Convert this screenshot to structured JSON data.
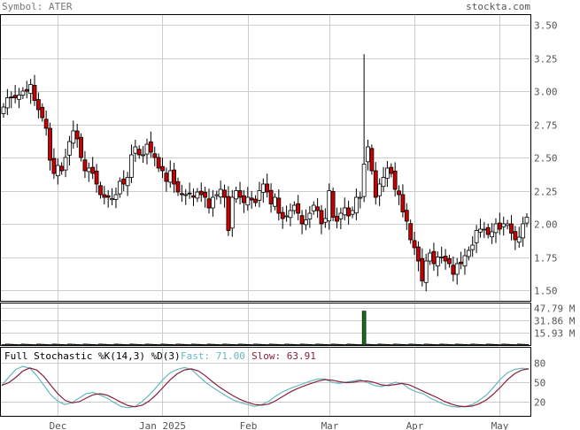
{
  "header": {
    "symbol": "Symbol: ATER",
    "site": "stockta.com"
  },
  "colors": {
    "up": "#ffffff",
    "down": "#cc0000",
    "volume": "#1a6b1a",
    "fast": "#66b8bf",
    "slow": "#8a1f3a",
    "grid": "#cccccc"
  },
  "chart_data": [
    {
      "type": "candlestick",
      "price_ticks": [
        "3.50",
        "3.25",
        "3.00",
        "2.75",
        "2.50",
        "2.25",
        "2.00",
        "1.75",
        "1.50"
      ],
      "price_tick_values": [
        3.5,
        3.25,
        3.0,
        2.75,
        2.5,
        2.25,
        2.0,
        1.75,
        1.5
      ],
      "ylim": [
        1.42,
        3.58
      ],
      "x_labels": [
        "Dec",
        "Jan 2025",
        "Feb",
        "Mar",
        "Apr",
        "May"
      ],
      "x_label_index": [
        14,
        41,
        63,
        84,
        106,
        128
      ],
      "grid": true,
      "n_days": 136,
      "close": [
        2.88,
        2.95,
        2.95,
        2.95,
        2.97,
        3.0,
        3.0,
        3.05,
        2.93,
        2.86,
        2.8,
        2.72,
        2.48,
        2.38,
        2.44,
        2.4,
        2.5,
        2.62,
        2.7,
        2.64,
        2.5,
        2.4,
        2.42,
        2.38,
        2.3,
        2.22,
        2.2,
        2.2,
        2.19,
        2.22,
        2.32,
        2.3,
        2.35,
        2.52,
        2.58,
        2.52,
        2.52,
        2.6,
        2.54,
        2.5,
        2.42,
        2.4,
        2.32,
        2.4,
        2.3,
        2.24,
        2.22,
        2.22,
        2.23,
        2.2,
        2.24,
        2.22,
        2.2,
        2.12,
        2.2,
        2.22,
        2.26,
        2.2,
        1.95,
        2.2,
        2.25,
        2.2,
        2.16,
        2.2,
        2.18,
        2.16,
        2.25,
        2.3,
        2.24,
        2.15,
        2.2,
        2.08,
        2.04,
        2.06,
        2.1,
        2.14,
        2.08,
        2.0,
        2.03,
        2.08,
        2.14,
        2.1,
        2.0,
        2.04,
        2.25,
        2.05,
        2.02,
        2.08,
        2.12,
        2.06,
        2.1,
        2.2,
        2.2,
        2.45,
        2.58,
        2.4,
        2.2,
        2.3,
        2.35,
        2.42,
        2.38,
        2.26,
        2.22,
        2.09,
        2.02,
        1.88,
        1.82,
        1.72,
        1.57,
        1.72,
        1.78,
        1.7,
        1.75,
        1.75,
        1.72,
        1.7,
        1.62,
        1.7,
        1.7,
        1.76,
        1.8,
        1.84,
        1.95,
        1.96,
        1.96,
        1.92,
        1.94,
        2.0,
        1.96,
        2.0,
        2.0,
        1.93,
        1.88,
        1.9,
        2.0,
        2.05
      ],
      "volume_ticks": [
        "47.79 M",
        "31.86 M",
        "15.93 M"
      ],
      "volume_tick_values": [
        47.79,
        31.86,
        15.93
      ],
      "volume_spike": {
        "index": 93,
        "value": 44.0
      },
      "stochastic": {
        "title": "Full Stochastic %K(14,3) %D(3)",
        "fast_label": "Fast: 71.00",
        "slow_label": "Slow: 63.91",
        "ticks": [
          "80",
          "50",
          "20"
        ],
        "tick_values": [
          80,
          50,
          20
        ],
        "fast": [
          45,
          58,
          70,
          75,
          72,
          60,
          45,
          30,
          20,
          15,
          18,
          25,
          32,
          34,
          30,
          25,
          18,
          12,
          10,
          12,
          20,
          30,
          42,
          55,
          65,
          70,
          73,
          70,
          60,
          50,
          42,
          35,
          28,
          22,
          18,
          15,
          12,
          15,
          20,
          28,
          35,
          40,
          44,
          48,
          52,
          55,
          55,
          50,
          48,
          50,
          52,
          54,
          50,
          45,
          43,
          46,
          50,
          48,
          40,
          35,
          32,
          25,
          20,
          15,
          12,
          11,
          12,
          15,
          22,
          30,
          42,
          55,
          65,
          70,
          72,
          71
        ]
      }
    }
  ]
}
